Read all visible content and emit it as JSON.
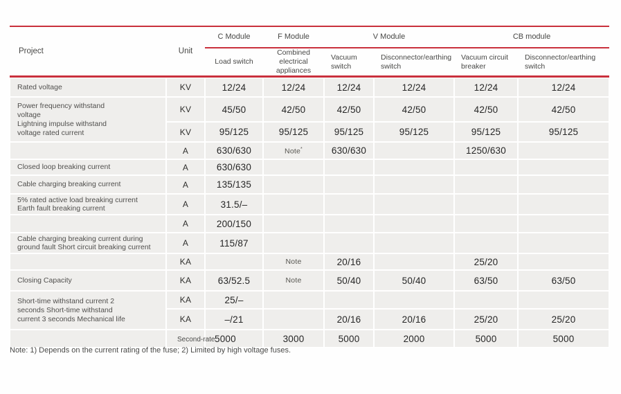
{
  "colors": {
    "accent_red": "#c9303c",
    "cell_bg": "#efeeec",
    "page_bg": "#fefefe"
  },
  "table": {
    "header": {
      "project": "Project",
      "unit": "Unit",
      "groups": [
        {
          "label": "C Module"
        },
        {
          "label": "F Module"
        },
        {
          "label": "V Module"
        },
        {
          "label": "CB module"
        }
      ],
      "subcolumns": [
        "Load switch",
        "Combined\nelectrical\nappliances",
        "Vacuum\nswitch",
        "Disconnector/earthing\nswitch",
        "Vacuum circuit\nbreaker",
        "Disconnector/earthing\nswitch"
      ]
    },
    "rows": [
      {
        "label": "Rated voltage",
        "unit": "KV",
        "values": [
          "12/24",
          "12/24",
          "12/24",
          "12/24",
          "12/24",
          "12/24"
        ]
      },
      {
        "label": "Power frequency withstand\nvoltage\nLightning impulse withstand\nvoltage rated current",
        "label_rowspan": 2,
        "unit": "KV",
        "values": [
          "45/50",
          "42/50",
          "42/50",
          "42/50",
          "42/50",
          "42/50"
        ]
      },
      {
        "label": null,
        "unit": "KV",
        "values": [
          "95/125",
          "95/125",
          "95/125",
          "95/125",
          "95/125",
          "95/125"
        ]
      },
      {
        "label": "",
        "unit": "A",
        "values": [
          "630/630",
          "Note*",
          "630/630",
          "",
          "1250/630",
          ""
        ]
      },
      {
        "label": "Closed loop breaking current",
        "unit": "A",
        "values": [
          "630/630",
          "",
          "",
          "",
          "",
          ""
        ]
      },
      {
        "label": "Cable charging breaking current",
        "unit": "A",
        "values": [
          "135/135",
          "",
          "",
          "",
          "",
          ""
        ]
      },
      {
        "label": "5% rated active load breaking current\nEarth fault breaking current",
        "unit": "A",
        "values": [
          "31.5/–",
          "",
          "",
          "",
          "",
          ""
        ]
      },
      {
        "label": "",
        "unit": "A",
        "values": [
          "200/150",
          "",
          "",
          "",
          "",
          ""
        ]
      },
      {
        "label": "Cable charging breaking current during\nground fault Short circuit breaking current",
        "unit": "A",
        "values": [
          "115/87",
          "",
          "",
          "",
          "",
          ""
        ]
      },
      {
        "label": "",
        "unit": "KA",
        "values": [
          "",
          "Note",
          "20/16",
          "",
          "25/20",
          ""
        ]
      },
      {
        "label": "Closing Capacity",
        "unit": "KA",
        "values": [
          "63/52.5",
          "Note",
          "50/40",
          "50/40",
          "63/50",
          "63/50"
        ]
      },
      {
        "label": "Short-time withstand current 2\nseconds Short-time withstand\ncurrent 3 seconds Mechanical life",
        "label_rowspan": 2,
        "unit": "KA",
        "values": [
          "25/–",
          "",
          "",
          "",
          "",
          ""
        ]
      },
      {
        "label": null,
        "unit": "KA",
        "values": [
          "–/21",
          "",
          "20/16",
          "20/16",
          "25/20",
          "25/20"
        ]
      },
      {
        "label": "",
        "unit": "Second-rate",
        "values": [
          "5000",
          "3000",
          "5000",
          "2000",
          "5000",
          "5000"
        ]
      }
    ],
    "footnote": "Note: 1) Depends on the current rating of the fuse; 2) Limited by high voltage fuses."
  }
}
